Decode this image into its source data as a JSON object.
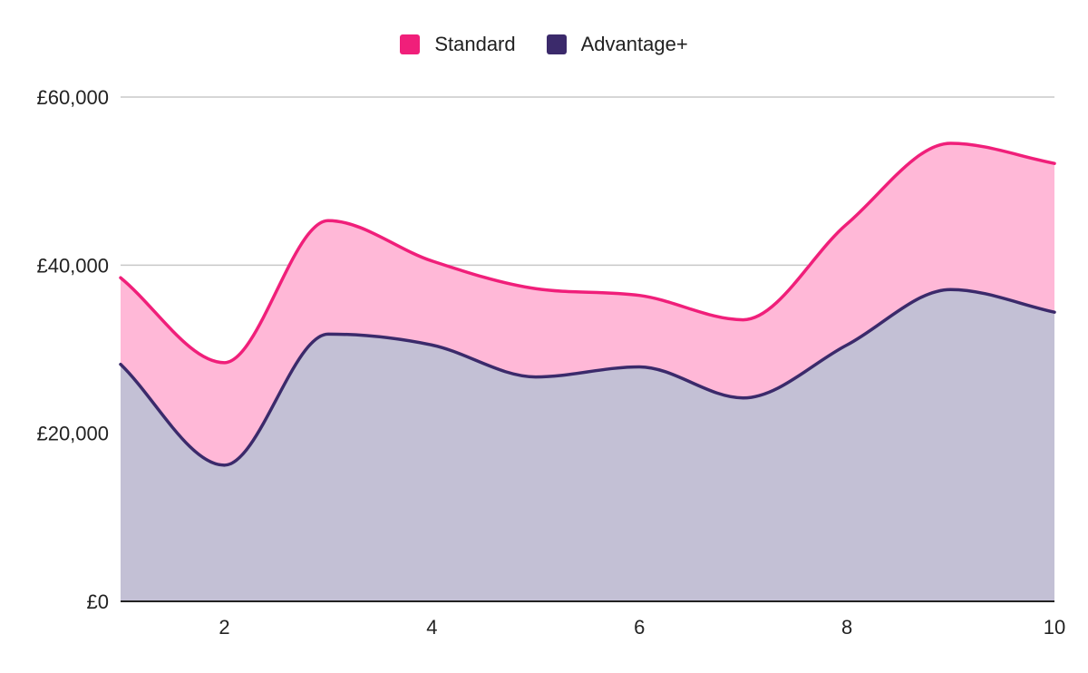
{
  "chart_data": {
    "type": "area",
    "stacked": true,
    "x": [
      1,
      2,
      3,
      4,
      5,
      6,
      7,
      8,
      9,
      10
    ],
    "xlim": [
      1,
      10
    ],
    "ylim": [
      0,
      60000
    ],
    "x_ticks": [
      2,
      4,
      6,
      8,
      10
    ],
    "y_ticks": [
      0,
      20000,
      40000,
      60000
    ],
    "y_tick_labels": [
      "£0",
      "£20,000",
      "£40,000",
      "£60,000"
    ],
    "grid": true,
    "legend_position": "top-center",
    "series": [
      {
        "name": "Advantage+",
        "color": "#3b2a6b",
        "fill": "#c3c0d5",
        "values": [
          28200,
          16200,
          31800,
          30500,
          26700,
          27900,
          24200,
          30500,
          37100,
          34400
        ]
      },
      {
        "name": "Standard",
        "color": "#f01f7a",
        "fill": "#ffb8d7",
        "values": [
          10300,
          12200,
          13500,
          10000,
          10500,
          8500,
          9300,
          14400,
          17400,
          17700
        ]
      }
    ]
  },
  "legend": [
    {
      "label": "Standard",
      "color": "#f01f7a"
    },
    {
      "label": "Advantage+",
      "color": "#3b2a6b"
    }
  ]
}
